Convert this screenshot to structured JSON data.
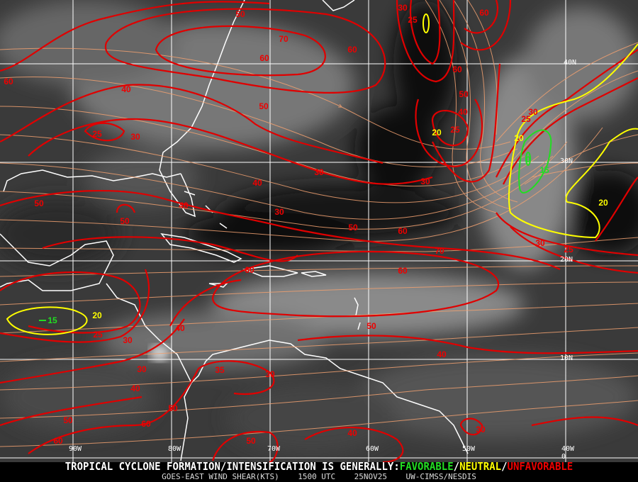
{
  "map": {
    "caption": {
      "prefix": "TROPICAL CYCLONE FORMATION/INTENSIFICATION IS GENERALLY:",
      "favorable": "FAVORABLE",
      "sep1": "/",
      "neutral": "NEUTRAL",
      "sep2": "/",
      "unfavorable": "UNFAVORABLE",
      "subtitle": "GOES-EAST WIND SHEAR(KTS)    1500 UTC    25NOV25    UW-CIMSS/NESDIS"
    },
    "colors": {
      "favorable": "#22dd22",
      "neutral": "#ffff00",
      "unfavorable": "#ee0000",
      "streamlines": "#f0a070",
      "coastline": "#ffffff",
      "grid": "#ffffff"
    },
    "longitude_labels": [
      "90W",
      "80W",
      "70W",
      "60W",
      "50W",
      "40W"
    ],
    "latitude_labels": [
      "40N",
      "30N",
      "20N",
      "10N",
      "0"
    ],
    "contour_labels": [
      {
        "value": "50",
        "class": "unfavorable"
      },
      {
        "value": "70",
        "class": "unfavorable"
      },
      {
        "value": "60",
        "class": "unfavorable"
      },
      {
        "value": "60",
        "class": "unfavorable"
      },
      {
        "value": "60",
        "class": "unfavorable"
      },
      {
        "value": "40",
        "class": "unfavorable"
      },
      {
        "value": "50",
        "class": "unfavorable"
      },
      {
        "value": "25",
        "class": "unfavorable"
      },
      {
        "value": "30",
        "class": "unfavorable"
      },
      {
        "value": "30",
        "class": "unfavorable"
      },
      {
        "value": "40",
        "class": "unfavorable"
      },
      {
        "value": "30",
        "class": "unfavorable"
      },
      {
        "value": "30",
        "class": "unfavorable"
      },
      {
        "value": "50",
        "class": "unfavorable"
      },
      {
        "value": "50",
        "class": "unfavorable"
      },
      {
        "value": "40",
        "class": "unfavorable"
      },
      {
        "value": "50",
        "class": "unfavorable"
      },
      {
        "value": "60",
        "class": "unfavorable"
      },
      {
        "value": "70",
        "class": "unfavorable"
      },
      {
        "value": "60",
        "class": "unfavorable"
      },
      {
        "value": "60",
        "class": "unfavorable"
      },
      {
        "value": "30",
        "class": "unfavorable"
      },
      {
        "value": "25",
        "class": "unfavorable"
      },
      {
        "value": "30",
        "class": "unfavorable"
      },
      {
        "value": "25",
        "class": "unfavorable"
      },
      {
        "value": "60",
        "class": "unfavorable"
      },
      {
        "value": "60",
        "class": "unfavorable"
      },
      {
        "value": "50",
        "class": "unfavorable"
      },
      {
        "value": "40",
        "class": "unfavorable"
      },
      {
        "value": "25",
        "class": "unfavorable"
      },
      {
        "value": "30",
        "class": "unfavorable"
      },
      {
        "value": "25",
        "class": "unfavorable"
      },
      {
        "value": "40",
        "class": "unfavorable"
      },
      {
        "value": "30",
        "class": "unfavorable"
      },
      {
        "value": "25",
        "class": "unfavorable"
      },
      {
        "value": "50",
        "class": "unfavorable"
      },
      {
        "value": "40",
        "class": "unfavorable"
      },
      {
        "value": "30",
        "class": "unfavorable"
      },
      {
        "value": "35",
        "class": "unfavorable"
      },
      {
        "value": "30",
        "class": "unfavorable"
      },
      {
        "value": "40",
        "class": "unfavorable"
      },
      {
        "value": "50",
        "class": "unfavorable"
      },
      {
        "value": "50",
        "class": "unfavorable"
      },
      {
        "value": "60",
        "class": "unfavorable"
      },
      {
        "value": "60",
        "class": "unfavorable"
      },
      {
        "value": "50",
        "class": "unfavorable"
      },
      {
        "value": "40",
        "class": "unfavorable"
      },
      {
        "value": "30",
        "class": "unfavorable"
      },
      {
        "value": "20",
        "class": "neutral"
      },
      {
        "value": "20",
        "class": "neutral"
      },
      {
        "value": "20",
        "class": "neutral"
      },
      {
        "value": "20",
        "class": "neutral"
      },
      {
        "value": "0",
        "class": "favorable"
      },
      {
        "value": "15",
        "class": "favorable"
      },
      {
        "value": "15",
        "class": "favorable"
      }
    ]
  }
}
